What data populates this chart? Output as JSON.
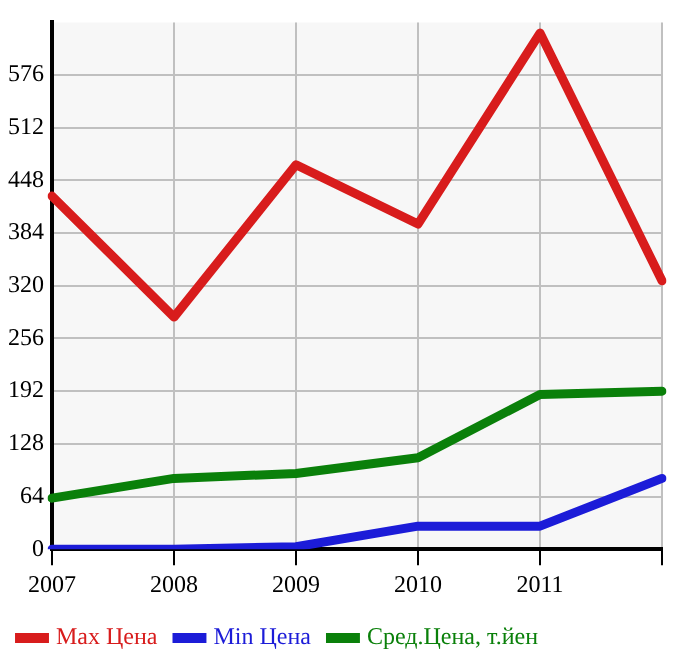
{
  "chart_data": {
    "type": "line",
    "categories": [
      "2007",
      "2008",
      "2009",
      "2010",
      "2011",
      null
    ],
    "series": [
      {
        "name": "Max Цена",
        "color": "#d81c1c",
        "values": [
          429,
          282,
          467,
          395,
          627,
          326
        ]
      },
      {
        "name": "Min Цена",
        "color": "#1c1cd8",
        "values": [
          0,
          0,
          3,
          28,
          28,
          86
        ]
      },
      {
        "name": "Сред.Цена, т.йен",
        "color": "#0a800a",
        "values": [
          62,
          86,
          92,
          111,
          188,
          192
        ]
      }
    ],
    "ylim": [
      0,
      640
    ],
    "yticks": [
      0,
      64,
      128,
      192,
      256,
      320,
      384,
      448,
      512,
      576
    ],
    "grid": true,
    "legend": "bottom left",
    "marker": "none",
    "line_style": "solid"
  }
}
